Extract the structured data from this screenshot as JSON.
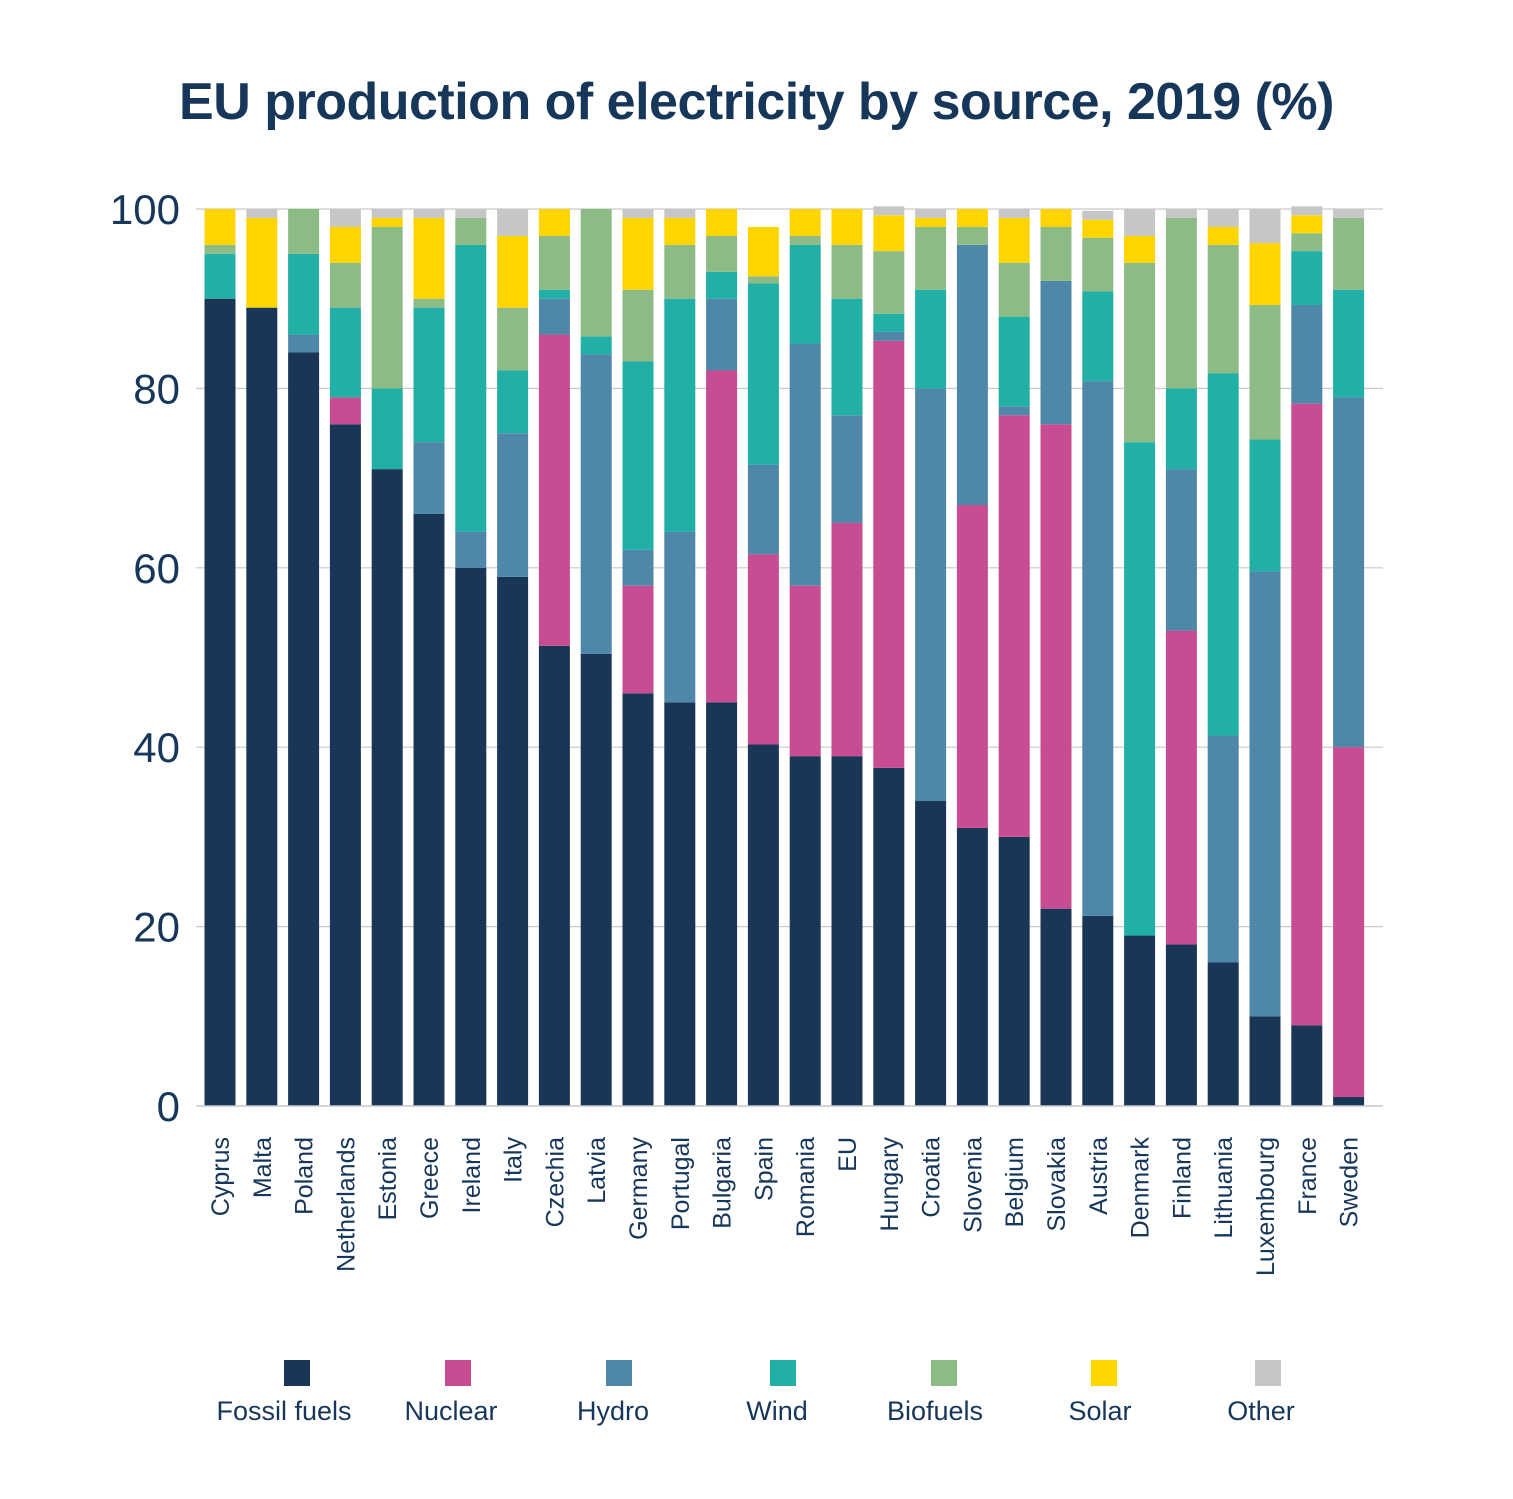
{
  "chart_data": {
    "type": "bar",
    "stacked": true,
    "title": "EU production of electricity by source, 2019 (%)",
    "xlabel": "",
    "ylabel": "",
    "ylim": [
      0,
      100
    ],
    "yticks": [
      0,
      20,
      40,
      60,
      80,
      100
    ],
    "grid": true,
    "legend_position": "bottom",
    "categories": [
      "Cyprus",
      "Malta",
      "Poland",
      "Netherlands",
      "Estonia",
      "Greece",
      "Ireland",
      "Italy",
      "Czechia",
      "Latvia",
      "Germany",
      "Portugal",
      "Bulgaria",
      "Spain",
      "Romania",
      "EU",
      "Hungary",
      "Croatia",
      "Slovenia",
      "Belgium",
      "Slovakia",
      "Austria",
      "Denmark",
      "Finland",
      "Lithuania",
      "Luxembourg",
      "France",
      "Sweden"
    ],
    "series": [
      {
        "name": "Fossil fuels",
        "color": "#1a3657",
        "values": [
          90,
          89,
          84,
          76,
          71,
          66,
          60,
          59,
          51.3,
          50.4,
          46,
          45,
          45,
          40.3,
          39,
          39,
          37.7,
          34,
          31,
          30,
          22,
          21.2,
          19,
          18,
          16,
          10,
          9,
          1
        ]
      },
      {
        "name": "Nuclear",
        "color": "#c84c91",
        "values": [
          0,
          0,
          0,
          3,
          0,
          0,
          0,
          0,
          34.7,
          0,
          12,
          0,
          37,
          21.2,
          19,
          26,
          47.6,
          0,
          36,
          47,
          54,
          0,
          0,
          35,
          0,
          0,
          69.3,
          39
        ]
      },
      {
        "name": "Hydro",
        "color": "#4f87a8",
        "values": [
          0,
          0,
          2,
          0,
          0,
          8,
          4,
          16,
          4,
          33.4,
          4,
          19,
          8,
          10,
          27,
          12,
          1,
          46,
          29,
          1,
          16,
          59.6,
          0,
          18,
          25.3,
          49.6,
          11,
          39
        ]
      },
      {
        "name": "Wind",
        "color": "#21afa6",
        "values": [
          5,
          0,
          9,
          10,
          9,
          15,
          32,
          7,
          1,
          2,
          21,
          26,
          3,
          20.2,
          11,
          13,
          2,
          11,
          0,
          10,
          0,
          10,
          55,
          9,
          40.4,
          14.7,
          6,
          12
        ]
      },
      {
        "name": "Biofuels",
        "color": "#8dbb86",
        "values": [
          1,
          0,
          5,
          5,
          18,
          1,
          3,
          7,
          6,
          14.2,
          8,
          6,
          4,
          0.8,
          1,
          6,
          7,
          7,
          2,
          6,
          6,
          6,
          20,
          19,
          14.3,
          15,
          2,
          8
        ]
      },
      {
        "name": "Solar",
        "color": "#ffd500",
        "values": [
          4,
          10,
          0,
          4,
          1,
          9,
          0,
          8,
          3,
          0,
          8,
          3,
          3,
          5.5,
          3,
          4,
          4,
          1,
          2,
          5,
          2,
          2,
          3,
          0,
          2,
          6.9,
          2,
          0
        ]
      },
      {
        "name": "Other",
        "color": "#c6c6c6",
        "values": [
          0,
          1,
          0,
          2,
          1,
          1,
          1,
          3,
          0,
          0,
          1,
          1,
          0,
          0,
          0,
          0,
          1,
          1,
          0,
          1,
          0,
          1,
          3,
          1,
          2,
          3.8,
          1,
          1
        ]
      }
    ]
  }
}
